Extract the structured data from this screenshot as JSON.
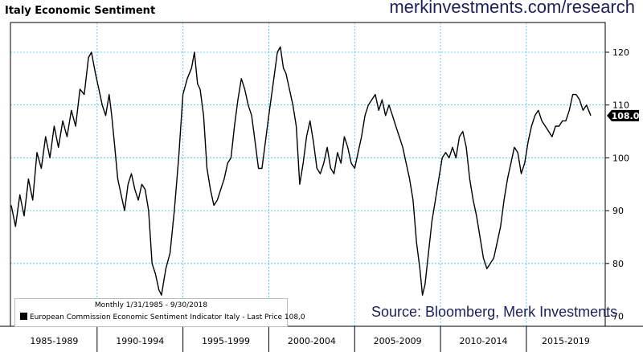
{
  "chart_data": {
    "type": "line",
    "title": "Italy Economic Sentiment",
    "source_url": "merkinvestments.com/research",
    "source_note": "Source: Bloomberg, Merk Investments",
    "legend_period": "Monthly 1/31/1985 - 9/30/2018",
    "legend_series": "European Commission Economic Sentiment Indicator Italy - Last Price  108,0",
    "last_price_label": "108.0",
    "x_range": [
      1985.0,
      2018.75
    ],
    "ylim": [
      70,
      125
    ],
    "y_ticks": [
      70,
      80,
      90,
      100,
      110,
      120
    ],
    "x_category_labels": [
      "1985-1989",
      "1990-1994",
      "1995-1999",
      "2000-2004",
      "2005-2009",
      "2010-2014",
      "2015-2019"
    ],
    "x_category_bounds": [
      1985,
      1990,
      1995,
      2000,
      2005,
      2010,
      2015,
      2020
    ],
    "grid": true,
    "legend_position": "bottom-left",
    "line_color": "#000000",
    "grid_color": "#33c6e6",
    "series": [
      {
        "points": [
          [
            1985.0,
            91
          ],
          [
            1985.25,
            87
          ],
          [
            1985.5,
            93
          ],
          [
            1985.75,
            89
          ],
          [
            1986.0,
            96
          ],
          [
            1986.25,
            92
          ],
          [
            1986.5,
            101
          ],
          [
            1986.75,
            98
          ],
          [
            1987.0,
            104
          ],
          [
            1987.25,
            100
          ],
          [
            1987.5,
            106
          ],
          [
            1987.75,
            102
          ],
          [
            1988.0,
            107
          ],
          [
            1988.25,
            104
          ],
          [
            1988.5,
            109
          ],
          [
            1988.75,
            106
          ],
          [
            1989.0,
            113
          ],
          [
            1989.25,
            112
          ],
          [
            1989.5,
            119
          ],
          [
            1989.67,
            120
          ],
          [
            1989.9,
            116
          ],
          [
            1990.1,
            113
          ],
          [
            1990.3,
            110
          ],
          [
            1990.5,
            108
          ],
          [
            1990.7,
            112
          ],
          [
            1990.85,
            108
          ],
          [
            1991.0,
            103
          ],
          [
            1991.2,
            96
          ],
          [
            1991.4,
            93
          ],
          [
            1991.6,
            90
          ],
          [
            1991.8,
            95
          ],
          [
            1992.0,
            97
          ],
          [
            1992.2,
            94
          ],
          [
            1992.4,
            92
          ],
          [
            1992.6,
            95
          ],
          [
            1992.8,
            94
          ],
          [
            1993.0,
            90
          ],
          [
            1993.2,
            80
          ],
          [
            1993.4,
            78
          ],
          [
            1993.6,
            75
          ],
          [
            1993.75,
            74
          ],
          [
            1994.0,
            79
          ],
          [
            1994.25,
            82
          ],
          [
            1994.5,
            90
          ],
          [
            1994.75,
            100
          ],
          [
            1995.0,
            112
          ],
          [
            1995.25,
            115
          ],
          [
            1995.5,
            117
          ],
          [
            1995.67,
            120
          ],
          [
            1995.85,
            114
          ],
          [
            1996.0,
            113
          ],
          [
            1996.2,
            108
          ],
          [
            1996.4,
            98
          ],
          [
            1996.6,
            94
          ],
          [
            1996.8,
            91
          ],
          [
            1997.0,
            92
          ],
          [
            1997.2,
            94
          ],
          [
            1997.4,
            96
          ],
          [
            1997.6,
            99
          ],
          [
            1997.8,
            100
          ],
          [
            1998.0,
            106
          ],
          [
            1998.2,
            111
          ],
          [
            1998.4,
            115
          ],
          [
            1998.6,
            113
          ],
          [
            1998.8,
            110
          ],
          [
            1999.0,
            108
          ],
          [
            1999.2,
            103
          ],
          [
            1999.4,
            98
          ],
          [
            1999.6,
            98
          ],
          [
            1999.8,
            103
          ],
          [
            2000.0,
            108
          ],
          [
            2000.25,
            114
          ],
          [
            2000.5,
            120
          ],
          [
            2000.67,
            121
          ],
          [
            2000.85,
            117
          ],
          [
            2001.0,
            116
          ],
          [
            2001.2,
            113
          ],
          [
            2001.4,
            110
          ],
          [
            2001.6,
            106
          ],
          [
            2001.8,
            95
          ],
          [
            2002.0,
            99
          ],
          [
            2002.2,
            104
          ],
          [
            2002.4,
            107
          ],
          [
            2002.6,
            103
          ],
          [
            2002.8,
            98
          ],
          [
            2003.0,
            97
          ],
          [
            2003.2,
            99
          ],
          [
            2003.4,
            102
          ],
          [
            2003.6,
            98
          ],
          [
            2003.8,
            97
          ],
          [
            2004.0,
            101
          ],
          [
            2004.2,
            99
          ],
          [
            2004.4,
            104
          ],
          [
            2004.6,
            102
          ],
          [
            2004.8,
            99
          ],
          [
            2005.0,
            98
          ],
          [
            2005.2,
            101
          ],
          [
            2005.4,
            104
          ],
          [
            2005.6,
            108
          ],
          [
            2005.8,
            110
          ],
          [
            2006.0,
            111
          ],
          [
            2006.2,
            112
          ],
          [
            2006.4,
            109
          ],
          [
            2006.6,
            111
          ],
          [
            2006.8,
            108
          ],
          [
            2007.0,
            110
          ],
          [
            2007.2,
            108
          ],
          [
            2007.4,
            106
          ],
          [
            2007.6,
            104
          ],
          [
            2007.8,
            102
          ],
          [
            2008.0,
            99
          ],
          [
            2008.2,
            96
          ],
          [
            2008.4,
            92
          ],
          [
            2008.6,
            84
          ],
          [
            2008.8,
            79
          ],
          [
            2008.95,
            74
          ],
          [
            2009.1,
            76
          ],
          [
            2009.3,
            82
          ],
          [
            2009.5,
            88
          ],
          [
            2009.7,
            92
          ],
          [
            2009.9,
            96
          ],
          [
            2010.1,
            100
          ],
          [
            2010.3,
            101
          ],
          [
            2010.5,
            100
          ],
          [
            2010.7,
            102
          ],
          [
            2010.9,
            100
          ],
          [
            2011.1,
            104
          ],
          [
            2011.3,
            105
          ],
          [
            2011.5,
            102
          ],
          [
            2011.7,
            96
          ],
          [
            2011.9,
            92
          ],
          [
            2012.1,
            89
          ],
          [
            2012.3,
            85
          ],
          [
            2012.5,
            81
          ],
          [
            2012.7,
            79
          ],
          [
            2012.9,
            80
          ],
          [
            2013.1,
            81
          ],
          [
            2013.3,
            84
          ],
          [
            2013.5,
            87
          ],
          [
            2013.7,
            92
          ],
          [
            2013.9,
            96
          ],
          [
            2014.1,
            99
          ],
          [
            2014.3,
            102
          ],
          [
            2014.5,
            101
          ],
          [
            2014.7,
            97
          ],
          [
            2014.9,
            99
          ],
          [
            2015.1,
            103
          ],
          [
            2015.3,
            106
          ],
          [
            2015.5,
            108
          ],
          [
            2015.7,
            109
          ],
          [
            2015.9,
            107
          ],
          [
            2016.1,
            106
          ],
          [
            2016.3,
            105
          ],
          [
            2016.5,
            104
          ],
          [
            2016.7,
            106
          ],
          [
            2016.9,
            106
          ],
          [
            2017.1,
            107
          ],
          [
            2017.3,
            107
          ],
          [
            2017.5,
            109
          ],
          [
            2017.7,
            112
          ],
          [
            2017.9,
            112
          ],
          [
            2018.1,
            111
          ],
          [
            2018.3,
            109
          ],
          [
            2018.5,
            110
          ],
          [
            2018.75,
            108
          ]
        ]
      }
    ]
  }
}
